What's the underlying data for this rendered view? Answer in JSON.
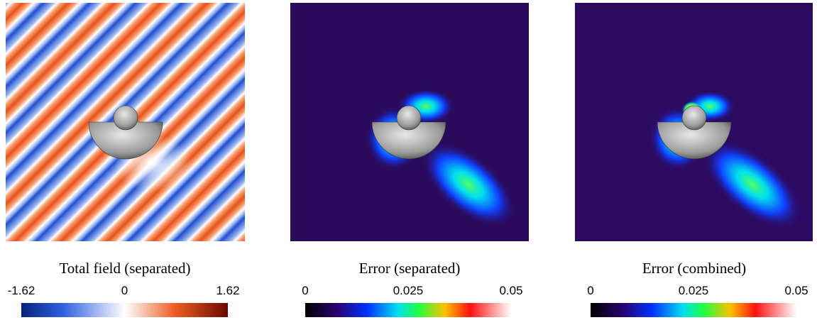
{
  "panels": [
    {
      "caption": "Total field (separated)",
      "colorbar_ticks": [
        -1.62,
        0,
        1.62
      ]
    },
    {
      "caption": "Error (separated)",
      "colorbar_ticks": [
        0,
        0.025,
        0.05
      ]
    },
    {
      "caption": "Error (combined)",
      "colorbar_ticks": [
        0,
        0.025,
        0.05
      ]
    }
  ]
}
